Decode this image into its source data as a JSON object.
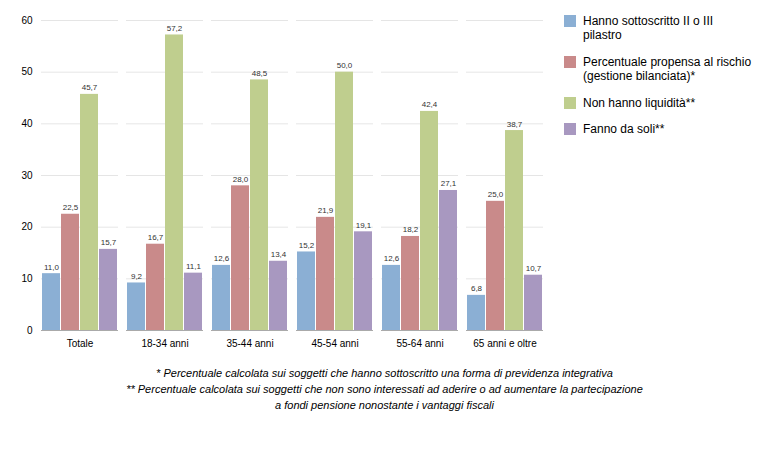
{
  "chart_data": {
    "type": "bar",
    "categories": [
      "Totale",
      "18-34 anni",
      "35-44 anni",
      "45-54 anni",
      "55-64 anni",
      "65 anni e oltre"
    ],
    "series": [
      {
        "name": "Hanno sottoscritto II o III\npilastro",
        "color": "#8bafd4",
        "values": [
          11.0,
          9.2,
          12.6,
          15.2,
          12.6,
          6.8
        ],
        "value_labels": [
          "11,0",
          "9,2",
          "12,6",
          "15,2",
          "12,6",
          "6,8"
        ]
      },
      {
        "name": "Percentuale propensa al rischio\n(gestione bilanciata)*",
        "color": "#c98a8a",
        "values": [
          22.5,
          16.7,
          28.0,
          21.9,
          18.2,
          25.0
        ],
        "value_labels": [
          "22,5",
          "16,7",
          "28,0",
          "21,9",
          "18,2",
          "25,0"
        ]
      },
      {
        "name": "Non hanno liquidità**",
        "color": "#bfce8e",
        "values": [
          45.7,
          57.2,
          48.5,
          50.0,
          42.4,
          38.7
        ],
        "value_labels": [
          "45,7",
          "57,2",
          "48,5",
          "50,0",
          "42,4",
          "38,7"
        ]
      },
      {
        "name": "Fanno da soli**",
        "color": "#a898c0",
        "values": [
          15.7,
          11.1,
          13.4,
          19.1,
          27.1,
          10.7
        ],
        "value_labels": [
          "15,7",
          "11,1",
          "13,4",
          "19,1",
          "27,1",
          "10,7"
        ]
      }
    ],
    "ylim": [
      0,
      60
    ],
    "yticks": [
      0,
      10,
      20,
      30,
      40,
      50,
      60
    ],
    "grid": true,
    "data_labels": true,
    "legend": "right",
    "annotations": [
      "* Percentuale calcolata sui soggetti che hanno sottoscritto una forma di previdenza integrativa",
      "** Percentuale calcolata sui soggetti che non sono interessati ad aderire o ad aumentare la partecipazione",
      "a fondi pensione nonostante i vantaggi fiscali"
    ]
  }
}
